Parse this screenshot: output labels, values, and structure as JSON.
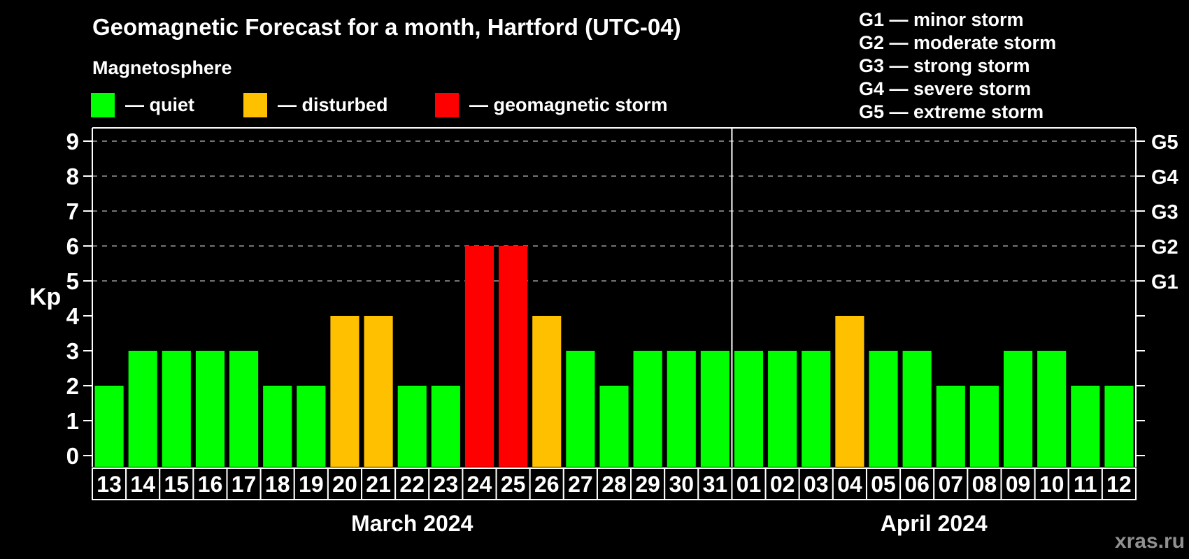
{
  "header": {
    "title": "Geomagnetic Forecast for a month, Hartford (UTC-04)",
    "subtitle": "Magnetosphere"
  },
  "legend": {
    "items": [
      {
        "name": "quiet",
        "label": "— quiet",
        "color": "#00ff00"
      },
      {
        "name": "disturbed",
        "label": "— disturbed",
        "color": "#ffc000"
      },
      {
        "name": "storm",
        "label": "— geomagnetic storm",
        "color": "#ff0000"
      }
    ]
  },
  "g_legend": {
    "items": [
      "G1 — minor storm",
      "G2 — moderate storm",
      "G3 — strong storm",
      "G4 — severe storm",
      "G5 — extreme storm"
    ]
  },
  "watermark": "xras.ru",
  "chart_data": {
    "type": "bar",
    "ylabel": "Kp",
    "ylim": [
      0,
      9
    ],
    "y_ticks": [
      0,
      1,
      2,
      3,
      4,
      5,
      6,
      7,
      8,
      9
    ],
    "grid": "dashed horizontal lines at storm levels only",
    "legend_position": "top",
    "storm_levels": [
      {
        "kp": 5,
        "label": "G1"
      },
      {
        "kp": 6,
        "label": "G2"
      },
      {
        "kp": 7,
        "label": "G3"
      },
      {
        "kp": 8,
        "label": "G4"
      },
      {
        "kp": 9,
        "label": "G5"
      }
    ],
    "status_colors": {
      "quiet": "#00ff00",
      "disturbed": "#ffc000",
      "storm": "#ff0000"
    },
    "months": [
      {
        "label": "March 2024",
        "bars": [
          {
            "day": "13",
            "kp": 2,
            "status": "quiet"
          },
          {
            "day": "14",
            "kp": 3,
            "status": "quiet"
          },
          {
            "day": "15",
            "kp": 3,
            "status": "quiet"
          },
          {
            "day": "16",
            "kp": 3,
            "status": "quiet"
          },
          {
            "day": "17",
            "kp": 3,
            "status": "quiet"
          },
          {
            "day": "18",
            "kp": 2,
            "status": "quiet"
          },
          {
            "day": "19",
            "kp": 2,
            "status": "quiet"
          },
          {
            "day": "20",
            "kp": 4,
            "status": "disturbed"
          },
          {
            "day": "21",
            "kp": 4,
            "status": "disturbed"
          },
          {
            "day": "22",
            "kp": 2,
            "status": "quiet"
          },
          {
            "day": "23",
            "kp": 2,
            "status": "quiet"
          },
          {
            "day": "24",
            "kp": 6,
            "status": "storm"
          },
          {
            "day": "25",
            "kp": 6,
            "status": "storm"
          },
          {
            "day": "26",
            "kp": 4,
            "status": "disturbed"
          },
          {
            "day": "27",
            "kp": 3,
            "status": "quiet"
          },
          {
            "day": "28",
            "kp": 2,
            "status": "quiet"
          },
          {
            "day": "29",
            "kp": 3,
            "status": "quiet"
          },
          {
            "day": "30",
            "kp": 3,
            "status": "quiet"
          },
          {
            "day": "31",
            "kp": 3,
            "status": "quiet"
          }
        ]
      },
      {
        "label": "April 2024",
        "bars": [
          {
            "day": "01",
            "kp": 3,
            "status": "quiet"
          },
          {
            "day": "02",
            "kp": 3,
            "status": "quiet"
          },
          {
            "day": "03",
            "kp": 3,
            "status": "quiet"
          },
          {
            "day": "04",
            "kp": 4,
            "status": "disturbed"
          },
          {
            "day": "05",
            "kp": 3,
            "status": "quiet"
          },
          {
            "day": "06",
            "kp": 3,
            "status": "quiet"
          },
          {
            "day": "07",
            "kp": 2,
            "status": "quiet"
          },
          {
            "day": "08",
            "kp": 2,
            "status": "quiet"
          },
          {
            "day": "09",
            "kp": 3,
            "status": "quiet"
          },
          {
            "day": "10",
            "kp": 3,
            "status": "quiet"
          },
          {
            "day": "11",
            "kp": 2,
            "status": "quiet"
          },
          {
            "day": "12",
            "kp": 2,
            "status": "quiet"
          }
        ]
      }
    ]
  }
}
